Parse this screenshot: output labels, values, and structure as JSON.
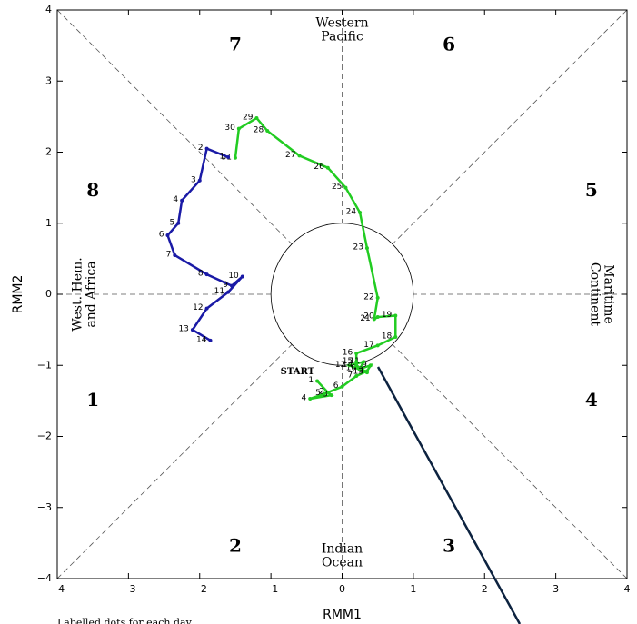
{
  "chart_data": {
    "type": "line",
    "xlabel": "RMM1",
    "ylabel": "RMM2",
    "footnote": "Labelled dots for each day",
    "start_label": "START",
    "xlim": [
      -4,
      4
    ],
    "ylim": [
      -4,
      4
    ],
    "xticks": [
      {
        "value": -4,
        "label": "−4"
      },
      {
        "value": -3,
        "label": "−3"
      },
      {
        "value": -2,
        "label": "−2"
      },
      {
        "value": -1,
        "label": "−1"
      },
      0,
      1,
      2,
      3,
      4
    ],
    "yticks": [
      {
        "value": -4,
        "label": "−4"
      },
      {
        "value": -3,
        "label": "−3"
      },
      {
        "value": -2,
        "label": "−2"
      },
      {
        "value": -1,
        "label": "−1"
      },
      0,
      1,
      2,
      3,
      4
    ],
    "phase_labels": [
      "1",
      "2",
      "3",
      "4",
      "5",
      "6",
      "7",
      "8"
    ],
    "region_labels": {
      "top": [
        "Western",
        "Pacific"
      ],
      "bottom": [
        "Indian",
        "Ocean"
      ],
      "left": [
        "West. Hem.",
        "and Africa"
      ],
      "right": [
        "Maritime",
        "Continent"
      ]
    },
    "series": [
      {
        "color": "#22cc22",
        "point_labels": [
          "1",
          "2",
          "3",
          "4",
          "5",
          "6",
          "7",
          "8",
          "9",
          "10",
          "11",
          "12",
          "13",
          "14",
          "15",
          "16",
          "17",
          "18",
          "19",
          "20",
          "21",
          "22",
          "23",
          "24",
          "25",
          "26",
          "27",
          "28",
          "29",
          "30",
          "31"
        ],
        "x": [
          -0.35,
          -0.2,
          -0.15,
          -0.45,
          -0.25,
          0.0,
          0.2,
          0.35,
          0.4,
          0.25,
          0.3,
          0.1,
          0.35,
          0.2,
          0.2,
          0.2,
          0.5,
          0.75,
          0.75,
          0.5,
          0.45,
          0.5,
          0.35,
          0.25,
          0.05,
          -0.2,
          -0.6,
          -1.05,
          -1.2,
          -1.45,
          -1.5
        ],
        "values": [
          -1.22,
          -1.38,
          -1.42,
          -1.47,
          -1.4,
          -1.3,
          -1.15,
          -1.08,
          -1.0,
          -1.05,
          -0.95,
          -1.0,
          -1.1,
          -1.0,
          -0.95,
          -0.83,
          -0.72,
          -0.6,
          -0.3,
          -0.32,
          -0.35,
          -0.05,
          0.65,
          1.15,
          1.5,
          1.78,
          1.95,
          2.3,
          2.48,
          2.33,
          1.92
        ]
      },
      {
        "color": "#1a1aa6",
        "point_labels": [
          "1",
          "2",
          "3",
          "4",
          "5",
          "6",
          "7",
          "8",
          "9",
          "10",
          "11",
          "12",
          "13",
          "14"
        ],
        "x": [
          -1.6,
          -1.9,
          -2.0,
          -2.25,
          -2.3,
          -2.45,
          -2.35,
          -1.9,
          -1.55,
          -1.4,
          -1.6,
          -1.9,
          -2.1,
          -1.85
        ],
        "values": [
          1.93,
          2.05,
          1.6,
          1.32,
          1.0,
          0.83,
          0.55,
          0.28,
          0.12,
          0.25,
          0.03,
          -0.2,
          -0.5,
          -0.65
        ]
      }
    ]
  }
}
